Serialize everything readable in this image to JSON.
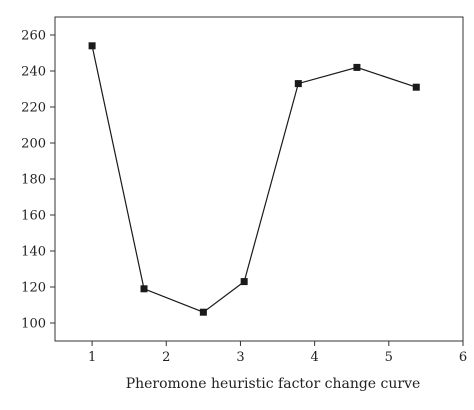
{
  "chart_data": {
    "type": "line",
    "title": "",
    "xlabel": "Pheromone heuristic factor change curve",
    "ylabel": "",
    "xlim": [
      0.5,
      6
    ],
    "ylim": [
      90,
      270
    ],
    "x_ticks": [
      1,
      2,
      3,
      4,
      5,
      6
    ],
    "y_ticks": [
      100,
      120,
      140,
      160,
      180,
      200,
      220,
      240,
      260
    ],
    "grid": false,
    "marker": "square",
    "series": [
      {
        "color": "#1a1a1a",
        "points": [
          {
            "x": 1.0,
            "y": 254
          },
          {
            "x": 1.7,
            "y": 119
          },
          {
            "x": 2.5,
            "y": 106
          },
          {
            "x": 3.05,
            "y": 123
          },
          {
            "x": 3.78,
            "y": 233
          },
          {
            "x": 4.57,
            "y": 242
          },
          {
            "x": 5.37,
            "y": 231
          }
        ]
      }
    ]
  }
}
